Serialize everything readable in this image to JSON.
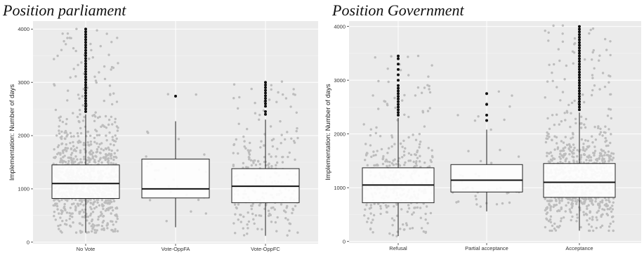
{
  "chart_data": [
    {
      "type": "box",
      "title": "Position parliament",
      "xlabel": "",
      "ylabel": "Implementation: Number of days",
      "ylim": [
        -30,
        4150
      ],
      "yticks": [
        0,
        1000,
        2000,
        3000,
        4000
      ],
      "categories": [
        "No Vote",
        "Vote-OppFA",
        "Vote-OppFC"
      ],
      "grid": true,
      "boxes": [
        {
          "q1": 820,
          "median": 1100,
          "q3": 1450,
          "whisker_low": 180,
          "whisker_high": 2400,
          "n_jitter": 900,
          "outliers": [
            2450,
            2500,
            2550,
            2600,
            2650,
            2700,
            2750,
            2800,
            2850,
            2900,
            2950,
            3000,
            3050,
            3100,
            3150,
            3200,
            3250,
            3300,
            3350,
            3400,
            3450,
            3500,
            3550,
            3600,
            3650,
            3700,
            3750,
            3800,
            3850,
            3900,
            3950,
            4000
          ]
        },
        {
          "q1": 830,
          "median": 1000,
          "q3": 1560,
          "whisker_low": 280,
          "whisker_high": 2270,
          "n_jitter": 28,
          "outliers": [
            2740
          ]
        },
        {
          "q1": 740,
          "median": 1050,
          "q3": 1380,
          "whisker_low": 120,
          "whisker_high": 2300,
          "n_jitter": 260,
          "outliers": [
            2400,
            2450,
            2550,
            2600,
            2650,
            2700,
            2750,
            2800,
            2850,
            2900,
            2950,
            3000
          ]
        }
      ]
    },
    {
      "type": "box",
      "title": "Position Government",
      "xlabel": "",
      "ylabel": "Implementation: Number of days",
      "ylim": [
        -30,
        4100
      ],
      "yticks": [
        0,
        1000,
        2000,
        3000,
        4000
      ],
      "categories": [
        "Refusal",
        "Partial acceptance",
        "Acceptance"
      ],
      "grid": true,
      "boxes": [
        {
          "q1": 720,
          "median": 1050,
          "q3": 1370,
          "whisker_low": 100,
          "whisker_high": 2300,
          "n_jitter": 330,
          "outliers": [
            2350,
            2400,
            2450,
            2500,
            2550,
            2600,
            2650,
            2700,
            2750,
            2800,
            2850,
            2900,
            3000,
            3100,
            3200,
            3300,
            3400,
            3450
          ]
        },
        {
          "q1": 920,
          "median": 1140,
          "q3": 1430,
          "whisker_low": 560,
          "whisker_high": 2080,
          "n_jitter": 40,
          "outliers": [
            2250,
            2350,
            2550,
            2750
          ]
        },
        {
          "q1": 820,
          "median": 1100,
          "q3": 1450,
          "whisker_low": 200,
          "whisker_high": 2400,
          "n_jitter": 760,
          "outliers": [
            2450,
            2500,
            2550,
            2600,
            2650,
            2700,
            2750,
            2800,
            2850,
            2900,
            2950,
            3000,
            3050,
            3100,
            3150,
            3200,
            3250,
            3300,
            3350,
            3400,
            3450,
            3500,
            3550,
            3600,
            3650,
            3700,
            3750,
            3800,
            3850,
            3900,
            3950,
            4000
          ]
        }
      ]
    }
  ]
}
